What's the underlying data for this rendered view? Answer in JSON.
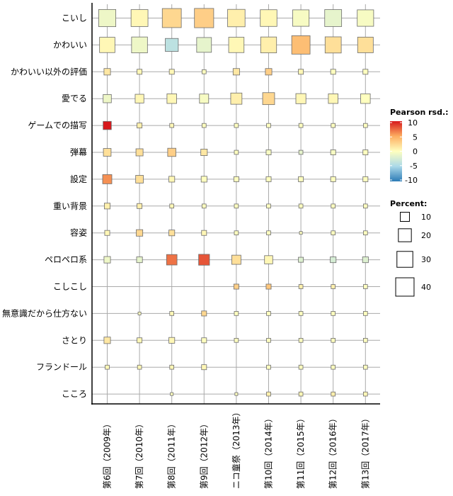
{
  "chart_data": {
    "type": "heatmap",
    "title": "",
    "xlabel": "",
    "ylabel": "",
    "x_categories": [
      "第6回（2009年）",
      "第7回（2010年）",
      "第8回（2011年）",
      "第9回（2012年）",
      "ニコ童祭（2013年）",
      "第10回（2014年）",
      "第11回（2015年）",
      "第12回（2016年）",
      "第13回（2017年）"
    ],
    "y_categories": [
      "こいし",
      "かわいい",
      "かわいい以外の評価",
      "愛でる",
      "ゲームでの描写",
      "弾幕",
      "設定",
      "重い背景",
      "容姿",
      "ペロペロ系",
      "こしこし",
      "無意識だから仕方ない",
      "さとり",
      "フランドール",
      "こころ"
    ],
    "percent": [
      [
        35,
        34,
        43,
        44,
        36,
        33,
        32,
        34,
        32
      ],
      [
        28,
        30,
        20,
        26,
        28,
        30,
        40,
        31,
        29
      ],
      [
        5,
        3,
        3,
        2,
        5,
        5,
        3,
        3,
        3
      ],
      [
        8,
        9,
        11,
        10,
        15,
        17,
        12,
        11,
        11
      ],
      [
        8,
        3,
        2,
        2,
        2,
        2,
        2,
        2,
        2
      ],
      [
        7,
        6,
        8,
        5,
        2,
        3,
        2,
        3,
        3
      ],
      [
        10,
        7,
        4,
        4,
        3,
        3,
        3,
        3,
        3
      ],
      [
        4,
        3,
        2,
        2,
        2,
        2,
        2,
        2,
        2
      ],
      [
        3,
        5,
        4,
        3,
        2,
        2,
        1,
        2,
        2
      ],
      [
        5,
        4,
        13,
        14,
        10,
        8,
        3,
        4,
        4
      ],
      [
        0,
        0,
        0,
        0,
        3,
        3,
        2,
        2,
        2
      ],
      [
        0,
        1,
        2,
        3,
        2,
        2,
        2,
        2,
        2
      ],
      [
        5,
        3,
        4,
        3,
        2,
        2,
        2,
        2,
        2
      ],
      [
        2,
        2,
        2,
        3,
        0,
        2,
        2,
        2,
        2
      ],
      [
        0,
        0,
        1,
        0,
        1,
        2,
        2,
        2,
        2
      ]
    ],
    "residual": [
      [
        -1,
        0.5,
        2.5,
        3,
        1,
        0.5,
        -0.5,
        -1.5,
        -0.5
      ],
      [
        0.5,
        -1,
        -4,
        -1.5,
        0.5,
        1,
        4,
        2,
        2
      ],
      [
        1.5,
        0.5,
        0.5,
        0,
        1.5,
        3,
        0.5,
        0,
        0
      ],
      [
        -1,
        0.5,
        0.5,
        -0.5,
        1,
        2.5,
        0.5,
        0.5,
        0
      ],
      [
        10,
        1,
        0.5,
        0,
        0,
        0,
        0,
        0,
        0
      ],
      [
        2,
        2,
        3,
        1.5,
        0,
        -0.5,
        -1.5,
        -0.5,
        0
      ],
      [
        6,
        2,
        0.5,
        0,
        0,
        0,
        0,
        0,
        0
      ],
      [
        1,
        1,
        0.5,
        0,
        0,
        0,
        0,
        0,
        0
      ],
      [
        0.5,
        2.5,
        2,
        0.5,
        0,
        0,
        0,
        0,
        0
      ],
      [
        -1,
        -1.5,
        7,
        8,
        2,
        0.5,
        -2,
        -2.5,
        -2
      ],
      [
        0,
        0,
        0,
        0,
        3,
        3.5,
        1,
        1,
        0
      ],
      [
        0,
        0,
        0.5,
        2.5,
        0,
        0,
        0,
        0,
        0
      ],
      [
        1.5,
        0.5,
        0.5,
        0,
        0,
        0,
        0,
        0,
        0
      ],
      [
        0.5,
        0.5,
        0.5,
        0.5,
        0,
        0,
        0,
        0,
        0
      ],
      [
        0,
        0,
        0,
        0,
        0,
        1,
        0.5,
        1,
        0.5
      ]
    ],
    "colorbar": {
      "title": "Pearson rsd.:",
      "range": [
        -10,
        10
      ],
      "ticks": [
        "10",
        "5",
        "0",
        "-5",
        "-10"
      ],
      "colors": [
        "#d7191c",
        "#fdae61",
        "#ffffbf",
        "#abd9e9",
        "#2c7bb6"
      ]
    },
    "size_legend": {
      "title": "Percent:",
      "values": [
        10,
        20,
        30,
        40
      ],
      "labels": [
        "10",
        "20",
        "30",
        "40"
      ]
    },
    "grid": true,
    "legend_position": "right"
  }
}
